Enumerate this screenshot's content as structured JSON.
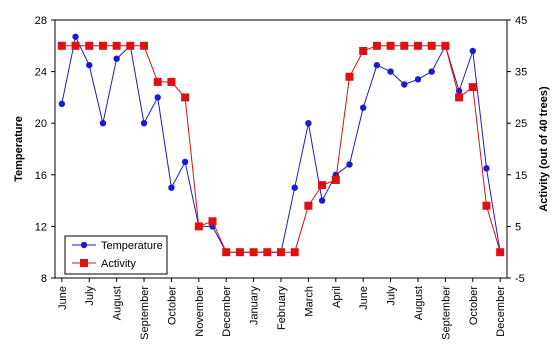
{
  "chart_data": {
    "type": "line",
    "ylabel_left": "Temperature",
    "ylabel_right": "Activity (out of 40 trees)",
    "left_axis": {
      "ylim": [
        8,
        28
      ],
      "ticks": [
        8,
        12,
        16,
        20,
        24,
        28
      ]
    },
    "right_axis": {
      "ylim": [
        -5,
        45
      ],
      "ticks": [
        -5,
        5,
        15,
        25,
        35,
        45
      ]
    },
    "x_ticks": [
      "June",
      "July",
      "August",
      "September",
      "October",
      "November",
      "December",
      "January",
      "February",
      "March",
      "April",
      "June",
      "July",
      "August",
      "September",
      "October",
      "December"
    ],
    "legend_position": "bottom-left",
    "series": [
      {
        "name": "Temperature",
        "axis": "left",
        "color": "#1a1ad4",
        "marker": "circle",
        "x": [
          0,
          0.5,
          1,
          1.5,
          2,
          2.5,
          3,
          3.5,
          4,
          4.5,
          5,
          5.5,
          6,
          6.5,
          7,
          7.5,
          8,
          8.5,
          9,
          9.5,
          10,
          10.5,
          11,
          11.5,
          12,
          12.5,
          13,
          13.5,
          14,
          14.5,
          15,
          15.5,
          16
        ],
        "values": [
          21.5,
          26.7,
          24.5,
          20,
          25,
          26,
          20,
          22,
          15,
          17,
          12,
          12,
          10,
          10,
          10,
          10,
          10,
          15,
          20,
          14,
          16,
          16.8,
          21.2,
          24.5,
          24,
          23,
          23.4,
          24,
          26,
          22.5,
          25.6,
          16.5,
          10
        ]
      },
      {
        "name": "Activity",
        "axis": "right",
        "color": "#e01010",
        "marker": "square",
        "x": [
          0,
          0.5,
          1,
          1.5,
          2,
          2.5,
          3,
          3.5,
          4,
          4.5,
          5,
          5.5,
          6,
          6.5,
          7,
          7.5,
          8,
          8.5,
          9,
          9.5,
          10,
          10.5,
          11,
          11.5,
          12,
          12.5,
          13,
          13.5,
          14,
          14.5,
          15,
          15.5,
          16
        ],
        "values": [
          40,
          40,
          40,
          40,
          40,
          40,
          40,
          33,
          33,
          30,
          5,
          6,
          0,
          0,
          0,
          0,
          0,
          0,
          9,
          13,
          14,
          34,
          39,
          40,
          40,
          40,
          40,
          40,
          40,
          30,
          32,
          9,
          0
        ]
      }
    ]
  }
}
